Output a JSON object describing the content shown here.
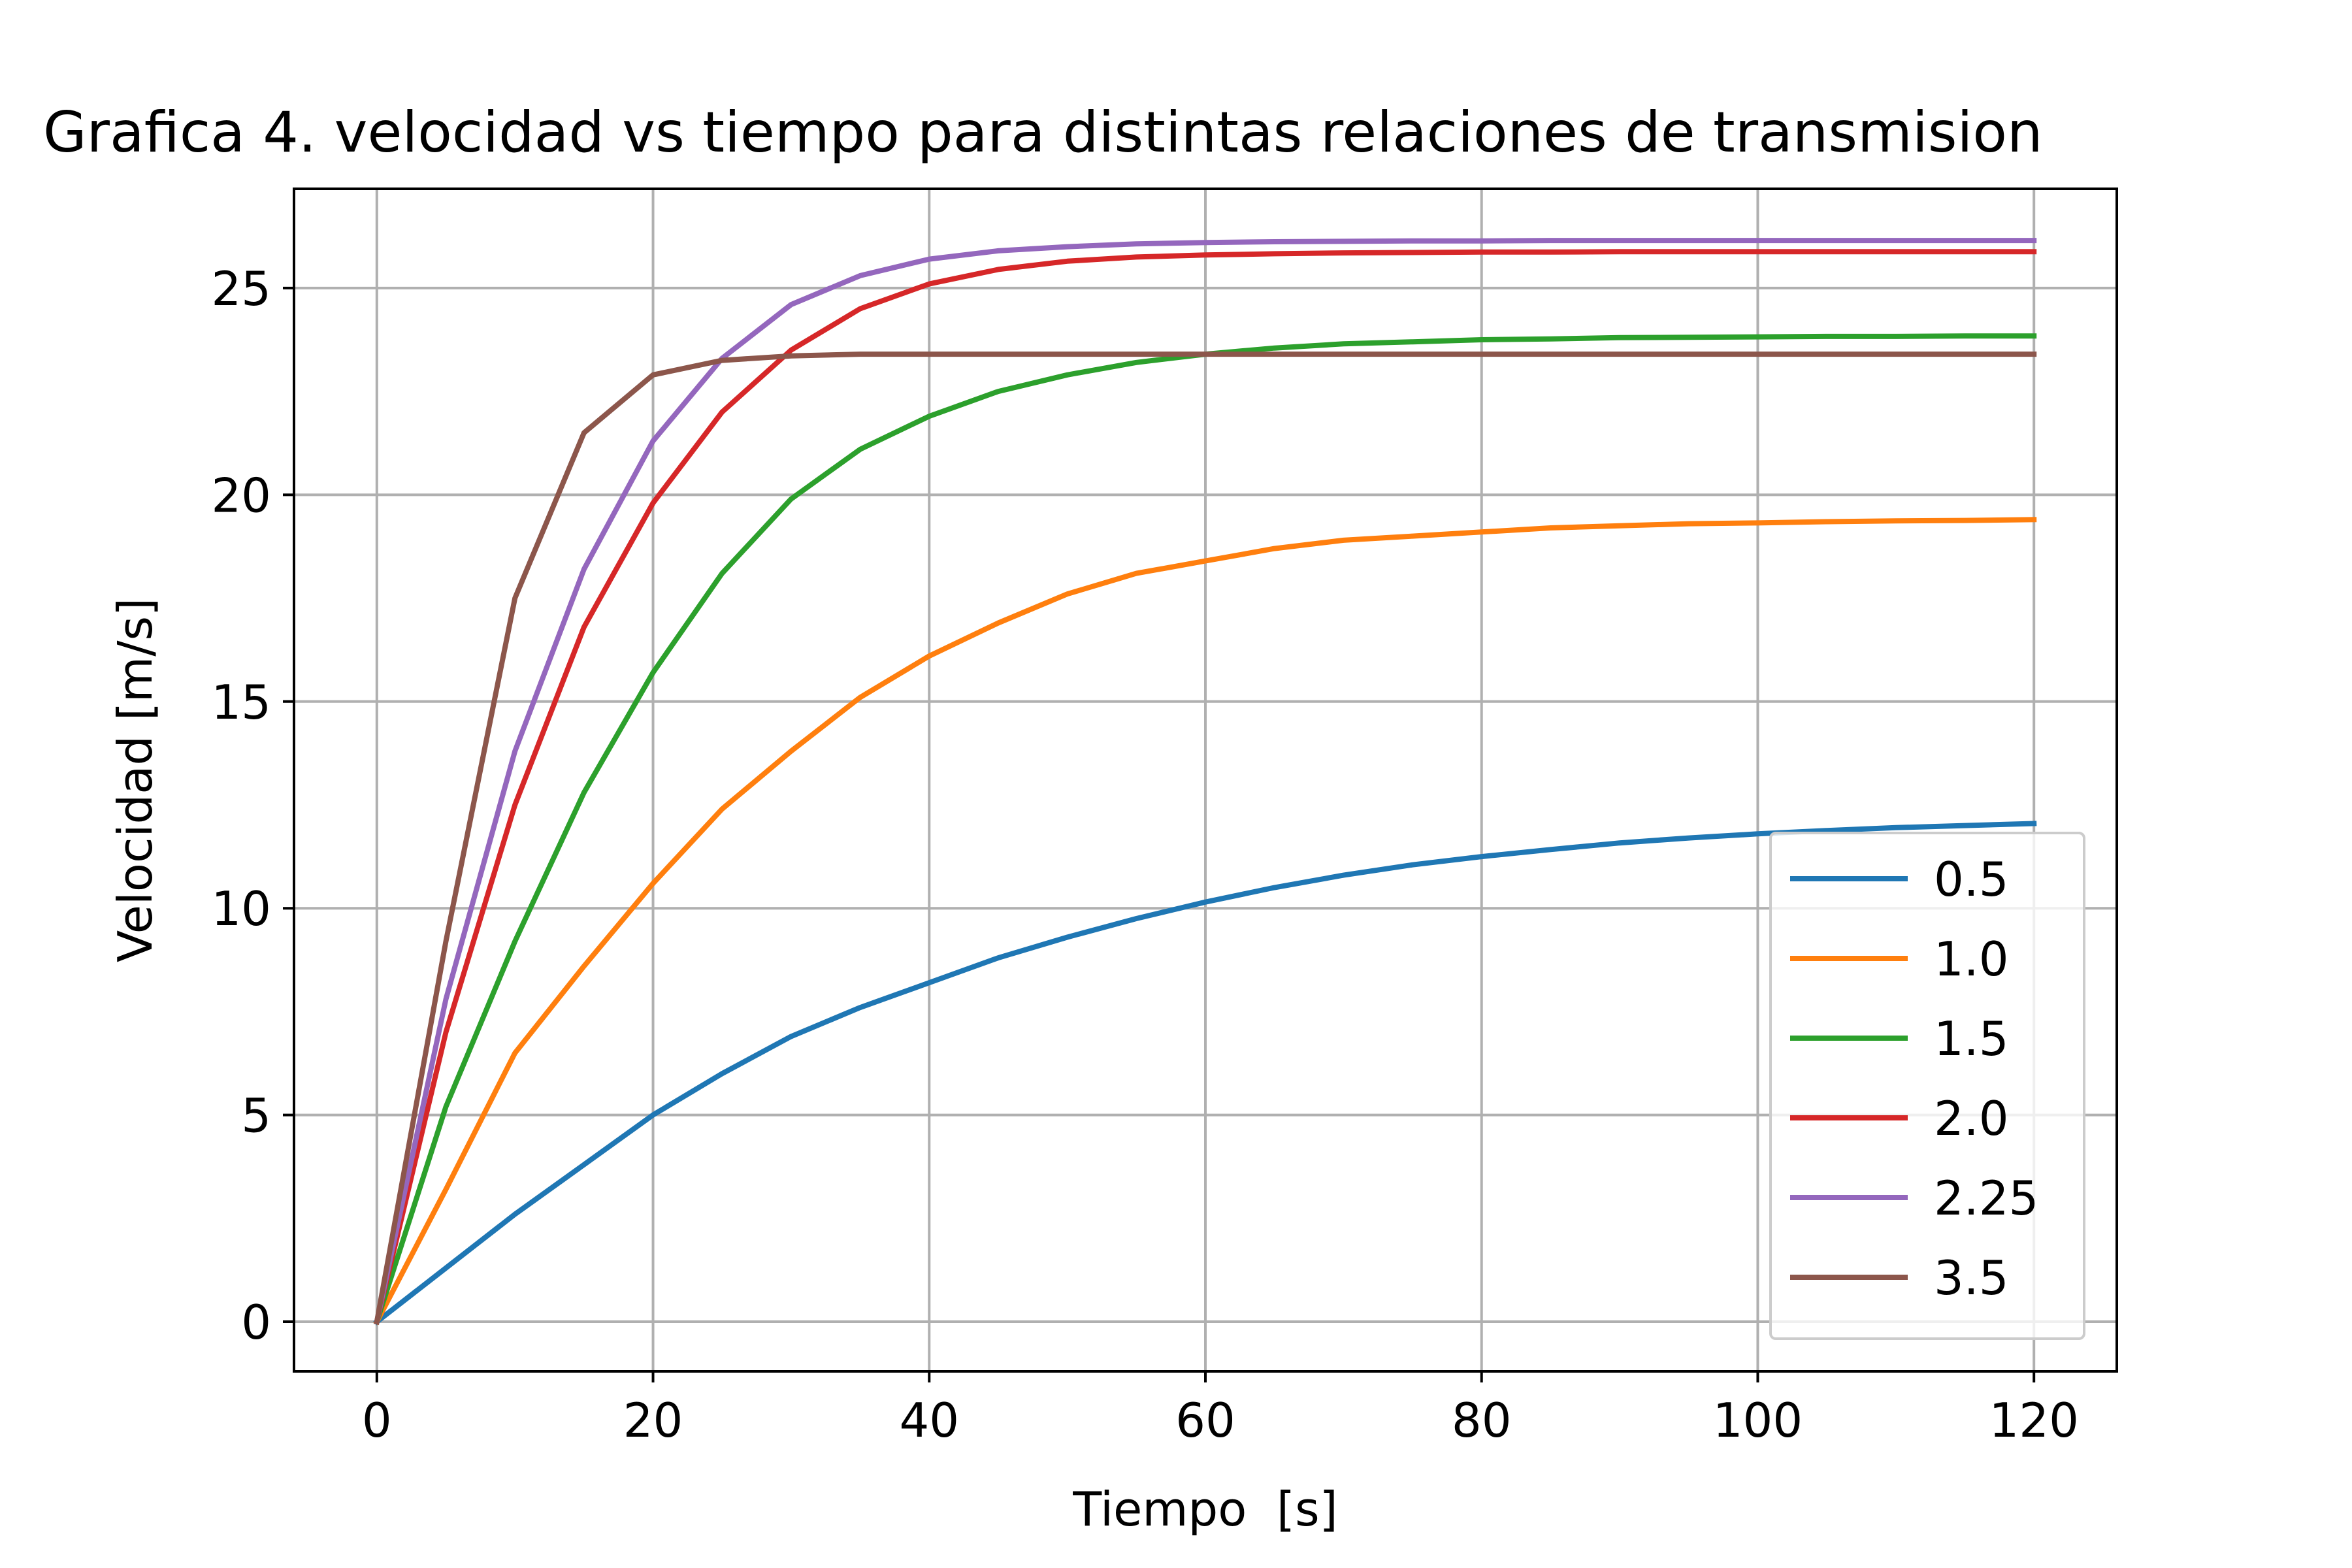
{
  "chart_data": {
    "type": "line",
    "title": "Grafica 4. velocidad vs tiempo para distintas relaciones de transmision",
    "xlabel": "Tiempo  [s]",
    "ylabel": "Velocidad [m/s]",
    "xlim": [
      -6,
      126
    ],
    "ylim": [
      -1.2,
      27.4
    ],
    "xticks": [
      0,
      20,
      40,
      60,
      80,
      100,
      120
    ],
    "yticks": [
      0,
      5,
      10,
      15,
      20,
      25
    ],
    "grid": true,
    "legend_position": "lower right",
    "x": [
      0,
      5,
      10,
      15,
      20,
      25,
      30,
      35,
      40,
      45,
      50,
      55,
      60,
      65,
      70,
      75,
      80,
      85,
      90,
      95,
      100,
      105,
      110,
      115,
      120
    ],
    "series": [
      {
        "name": "0.5",
        "color": "#1f77b4",
        "values": [
          0,
          1.3,
          2.6,
          3.8,
          5.0,
          6.0,
          6.9,
          7.6,
          8.2,
          8.8,
          9.3,
          9.75,
          10.15,
          10.5,
          10.8,
          11.05,
          11.25,
          11.42,
          11.58,
          11.7,
          11.8,
          11.88,
          11.95,
          12.0,
          12.05
        ]
      },
      {
        "name": "1.0",
        "color": "#ff7f0e",
        "values": [
          0,
          3.2,
          6.5,
          8.6,
          10.6,
          12.4,
          13.8,
          15.1,
          16.1,
          16.9,
          17.6,
          18.1,
          18.4,
          18.7,
          18.9,
          19.0,
          19.1,
          19.2,
          19.25,
          19.3,
          19.32,
          19.35,
          19.37,
          19.38,
          19.4
        ]
      },
      {
        "name": "1.5",
        "color": "#2ca02c",
        "values": [
          0,
          5.2,
          9.2,
          12.8,
          15.7,
          18.1,
          19.9,
          21.1,
          21.9,
          22.5,
          22.9,
          23.2,
          23.4,
          23.55,
          23.65,
          23.7,
          23.75,
          23.77,
          23.8,
          23.81,
          23.82,
          23.83,
          23.83,
          23.84,
          23.84
        ]
      },
      {
        "name": "2.0",
        "color": "#d62728",
        "values": [
          0,
          7.0,
          12.5,
          16.8,
          19.8,
          22.0,
          23.5,
          24.5,
          25.1,
          25.45,
          25.65,
          25.75,
          25.8,
          25.83,
          25.85,
          25.86,
          25.87,
          25.87,
          25.88,
          25.88,
          25.88,
          25.88,
          25.88,
          25.88,
          25.88
        ]
      },
      {
        "name": "2.25",
        "color": "#9467bd",
        "values": [
          0,
          7.8,
          13.8,
          18.2,
          21.3,
          23.3,
          24.6,
          25.3,
          25.7,
          25.9,
          26.0,
          26.07,
          26.1,
          26.12,
          26.13,
          26.14,
          26.14,
          26.15,
          26.15,
          26.15,
          26.15,
          26.15,
          26.15,
          26.15,
          26.15
        ]
      },
      {
        "name": "3.5",
        "color": "#8c564b",
        "values": [
          0,
          9.2,
          17.5,
          21.5,
          22.9,
          23.25,
          23.36,
          23.4,
          23.4,
          23.4,
          23.4,
          23.4,
          23.4,
          23.4,
          23.4,
          23.4,
          23.4,
          23.4,
          23.4,
          23.4,
          23.4,
          23.4,
          23.4,
          23.4,
          23.4
        ]
      }
    ]
  }
}
